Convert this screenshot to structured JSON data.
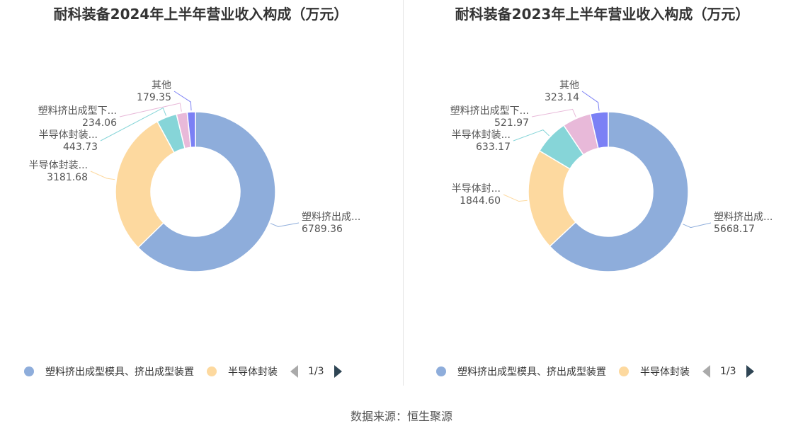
{
  "source_label": "数据来源：恒生聚源",
  "chart_data": [
    {
      "type": "pie",
      "donut": true,
      "title": "耐科装备2024年上半年营业收入构成（万元）",
      "categories": [
        "塑料挤出成型模具、挤出成型装置",
        "半导体封装",
        "半导体封装设备配件",
        "塑料挤出成型下游设备",
        "其他"
      ],
      "labels": [
        "塑料挤出成...",
        "半导体封装...",
        "半导体封装...",
        "塑料挤出成型下...",
        "其他"
      ],
      "values": [
        6789.36,
        3181.68,
        443.73,
        234.06,
        179.35
      ],
      "value_labels": [
        "6789.36",
        "3181.68",
        "443.73",
        "234.06",
        "179.35"
      ],
      "colors": [
        "#8eaddb",
        "#fdd99f",
        "#86d5d8",
        "#e8b9d9",
        "#7b80f5"
      ],
      "legend": {
        "position": "bottom-left",
        "visible_items": [
          {
            "label": "塑料挤出成型模具、挤出成型装置",
            "color": "#8eaddb"
          },
          {
            "label": "半导体封装",
            "color": "#fdd99f"
          }
        ],
        "page": "1/3"
      }
    },
    {
      "type": "pie",
      "donut": true,
      "title": "耐科装备2023年上半年营业收入构成（万元）",
      "categories": [
        "塑料挤出成型模具、挤出成型装置",
        "半导体封装",
        "半导体封装设备配件",
        "塑料挤出成型下游设备",
        "其他"
      ],
      "labels": [
        "塑料挤出成...",
        "半导体封...",
        "半导体封装...",
        "塑料挤出成型下...",
        "其他"
      ],
      "values": [
        5668.17,
        1844.6,
        633.17,
        521.97,
        323.14
      ],
      "value_labels": [
        "5668.17",
        "1844.60",
        "633.17",
        "521.97",
        "323.14"
      ],
      "colors": [
        "#8eaddb",
        "#fdd99f",
        "#86d5d8",
        "#e8b9d9",
        "#7b80f5"
      ],
      "legend": {
        "position": "bottom-left",
        "visible_items": [
          {
            "label": "塑料挤出成型模具、挤出成型装置",
            "color": "#8eaddb"
          },
          {
            "label": "半导体封装",
            "color": "#fdd99f"
          }
        ],
        "page": "1/3"
      }
    }
  ]
}
